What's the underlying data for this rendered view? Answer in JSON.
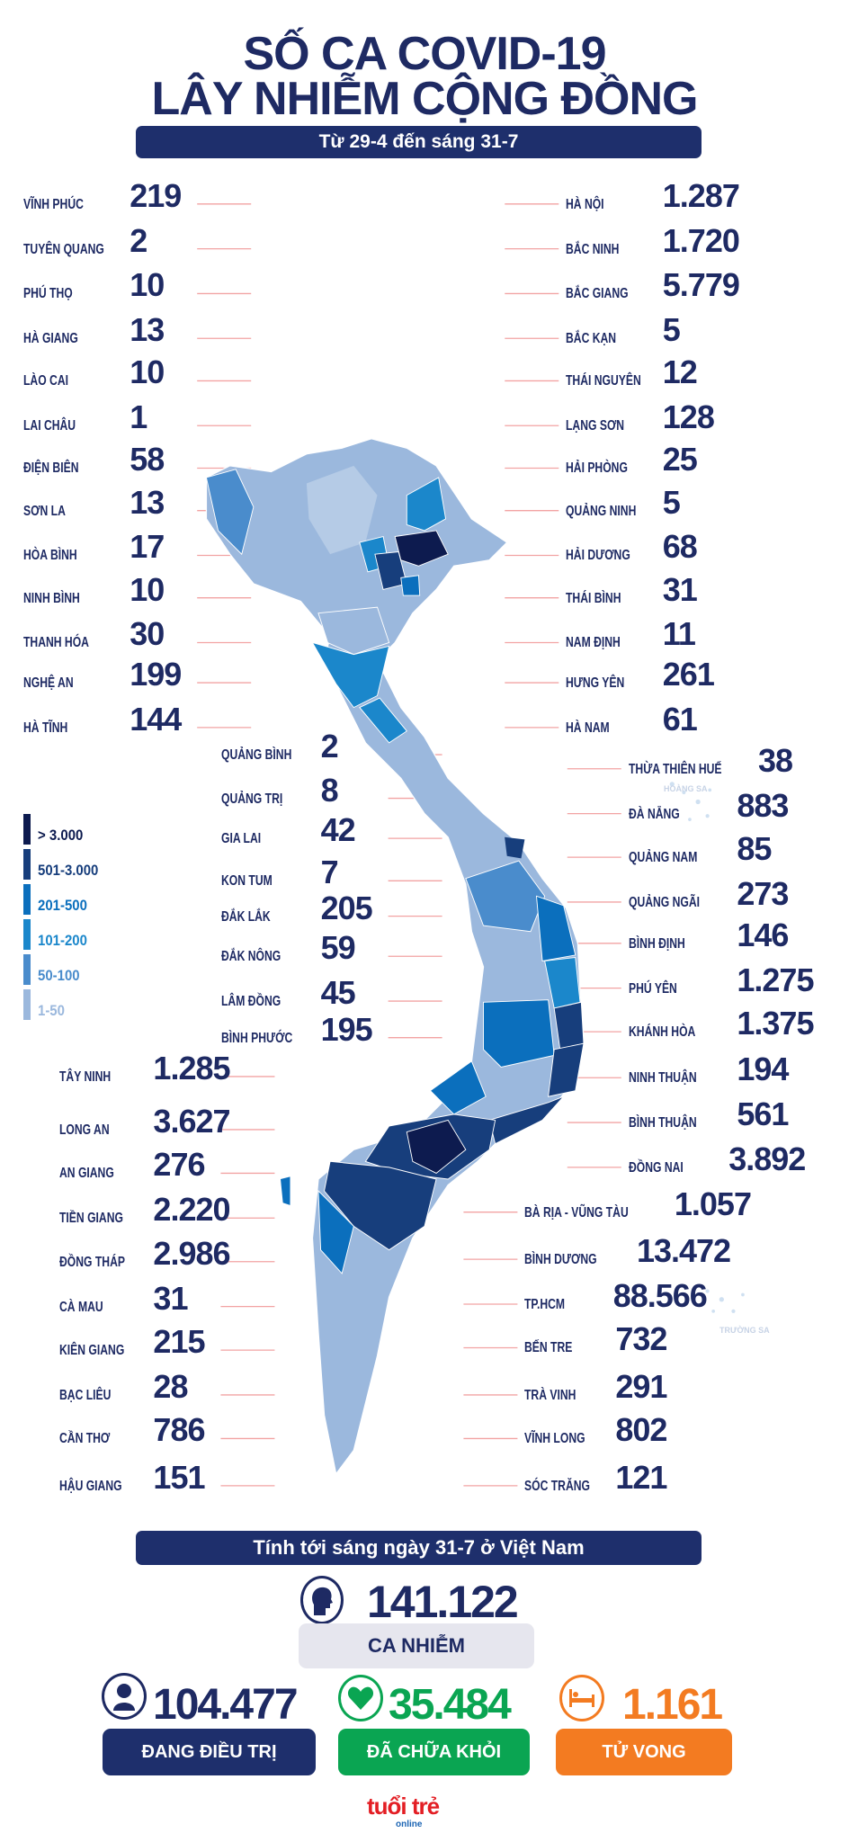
{
  "header": {
    "title_line1": "SỐ CA COVID-19",
    "title_line2": "LÂY NHIỄM CỘNG ĐỒNG",
    "subtitle": "Từ 29-4 đến sáng 31-7"
  },
  "chart_data": {
    "type": "choropleth-map",
    "title": "SỐ CA COVID-19 LÂY NHIỄM CỘNG ĐỒNG",
    "subtitle": "Từ 29-4 đến sáng 31-7",
    "legend": [
      {
        "label": "> 3.000",
        "color": "#0d1b4f"
      },
      {
        "label": "501-3.000",
        "color": "#173e7c"
      },
      {
        "label": "201-500",
        "color": "#0b6fbd"
      },
      {
        "label": "101-200",
        "color": "#1b87cb"
      },
      {
        "label": "50-100",
        "color": "#4a8ccc"
      },
      {
        "label": "1-50",
        "color": "#9bb8dd"
      }
    ],
    "provinces": [
      {
        "name": "VĨNH PHÚC",
        "cases": "219"
      },
      {
        "name": "TUYÊN QUANG",
        "cases": "2"
      },
      {
        "name": "PHÚ THỌ",
        "cases": "10"
      },
      {
        "name": "HÀ GIANG",
        "cases": "13"
      },
      {
        "name": "LÀO CAI",
        "cases": "10"
      },
      {
        "name": "LAI CHÂU",
        "cases": "1"
      },
      {
        "name": "ĐIỆN BIÊN",
        "cases": "58"
      },
      {
        "name": "SƠN LA",
        "cases": "13"
      },
      {
        "name": "HÒA BÌNH",
        "cases": "17"
      },
      {
        "name": "NINH BÌNH",
        "cases": "10"
      },
      {
        "name": "THANH HÓA",
        "cases": "30"
      },
      {
        "name": "NGHỆ AN",
        "cases": "199"
      },
      {
        "name": "HÀ TĨNH",
        "cases": "144"
      },
      {
        "name": "HÀ NỘI",
        "cases": "1.287"
      },
      {
        "name": "BẮC NINH",
        "cases": "1.720"
      },
      {
        "name": "BẮC GIANG",
        "cases": "5.779"
      },
      {
        "name": "BẮC KẠN",
        "cases": "5"
      },
      {
        "name": "THÁI NGUYÊN",
        "cases": "12"
      },
      {
        "name": "LẠNG SƠN",
        "cases": "128"
      },
      {
        "name": "HẢI PHÒNG",
        "cases": "25"
      },
      {
        "name": "QUẢNG NINH",
        "cases": "5"
      },
      {
        "name": "HẢI DƯƠNG",
        "cases": "68"
      },
      {
        "name": "THÁI BÌNH",
        "cases": "31"
      },
      {
        "name": "NAM ĐỊNH",
        "cases": "11"
      },
      {
        "name": "HƯNG YÊN",
        "cases": "261"
      },
      {
        "name": "HÀ NAM",
        "cases": "61"
      },
      {
        "name": "QUẢNG BÌNH",
        "cases": "2"
      },
      {
        "name": "QUẢNG TRỊ",
        "cases": "8"
      },
      {
        "name": "GIA LAI",
        "cases": "42"
      },
      {
        "name": "KON TUM",
        "cases": "7"
      },
      {
        "name": "ĐẮK LẮK",
        "cases": "205"
      },
      {
        "name": "ĐẮK NÔNG",
        "cases": "59"
      },
      {
        "name": "LÂM ĐỒNG",
        "cases": "45"
      },
      {
        "name": "BÌNH PHƯỚC",
        "cases": "195"
      },
      {
        "name": "THỪA THIÊN HUẾ",
        "cases": "38"
      },
      {
        "name": "ĐÀ NẴNG",
        "cases": "883"
      },
      {
        "name": "QUẢNG NAM",
        "cases": "85"
      },
      {
        "name": "QUẢNG NGÃI",
        "cases": "273"
      },
      {
        "name": "BÌNH ĐỊNH",
        "cases": "146"
      },
      {
        "name": "PHÚ YÊN",
        "cases": "1.275"
      },
      {
        "name": "KHÁNH HÒA",
        "cases": "1.375"
      },
      {
        "name": "NINH THUẬN",
        "cases": "194"
      },
      {
        "name": "BÌNH THUẬN",
        "cases": "561"
      },
      {
        "name": "ĐỒNG NAI",
        "cases": "3.892"
      },
      {
        "name": "BÀ RỊA - VŨNG TÀU",
        "cases": "1.057"
      },
      {
        "name": "BÌNH DƯƠNG",
        "cases": "13.472"
      },
      {
        "name": "TP.HCM",
        "cases": "88.566"
      },
      {
        "name": "BẾN TRE",
        "cases": "732"
      },
      {
        "name": "TRÀ VINH",
        "cases": "291"
      },
      {
        "name": "VĨNH LONG",
        "cases": "802"
      },
      {
        "name": "SÓC TRĂNG",
        "cases": "121"
      },
      {
        "name": "TÂY NINH",
        "cases": "1.285"
      },
      {
        "name": "LONG AN",
        "cases": "3.627"
      },
      {
        "name": "AN GIANG",
        "cases": "276"
      },
      {
        "name": "TIỀN GIANG",
        "cases": "2.220"
      },
      {
        "name": "ĐỒNG THÁP",
        "cases": "2.986"
      },
      {
        "name": "CÀ MAU",
        "cases": "31"
      },
      {
        "name": "KIÊN GIANG",
        "cases": "215"
      },
      {
        "name": "BẠC LIÊU",
        "cases": "28"
      },
      {
        "name": "CẦN THƠ",
        "cases": "786"
      },
      {
        "name": "HẬU GIANG",
        "cases": "151"
      }
    ],
    "islands": {
      "hoang_sa": "HOÀNG SA",
      "truong_sa": "TRƯỜNG SA"
    }
  },
  "summary": {
    "heading": "Tính tới sáng ngày 31-7 ở Việt Nam",
    "total": {
      "value": "141.122",
      "label": "CA NHIỄM",
      "icon": "head-icon"
    },
    "treating": {
      "value": "104.477",
      "label": "ĐANG ĐIỀU TRỊ",
      "color": "#1e2f6c",
      "icon": "doctor-icon"
    },
    "recovered": {
      "value": "35.484",
      "label": "ĐÃ CHỮA KHỎI",
      "color": "#0aa552",
      "icon": "heart-icon"
    },
    "deaths": {
      "value": "1.161",
      "label": "TỬ VONG",
      "color": "#f37b21",
      "icon": "bed-icon"
    }
  },
  "brand": {
    "logo_text": "tuổi trẻ",
    "logo_sub": "online"
  }
}
